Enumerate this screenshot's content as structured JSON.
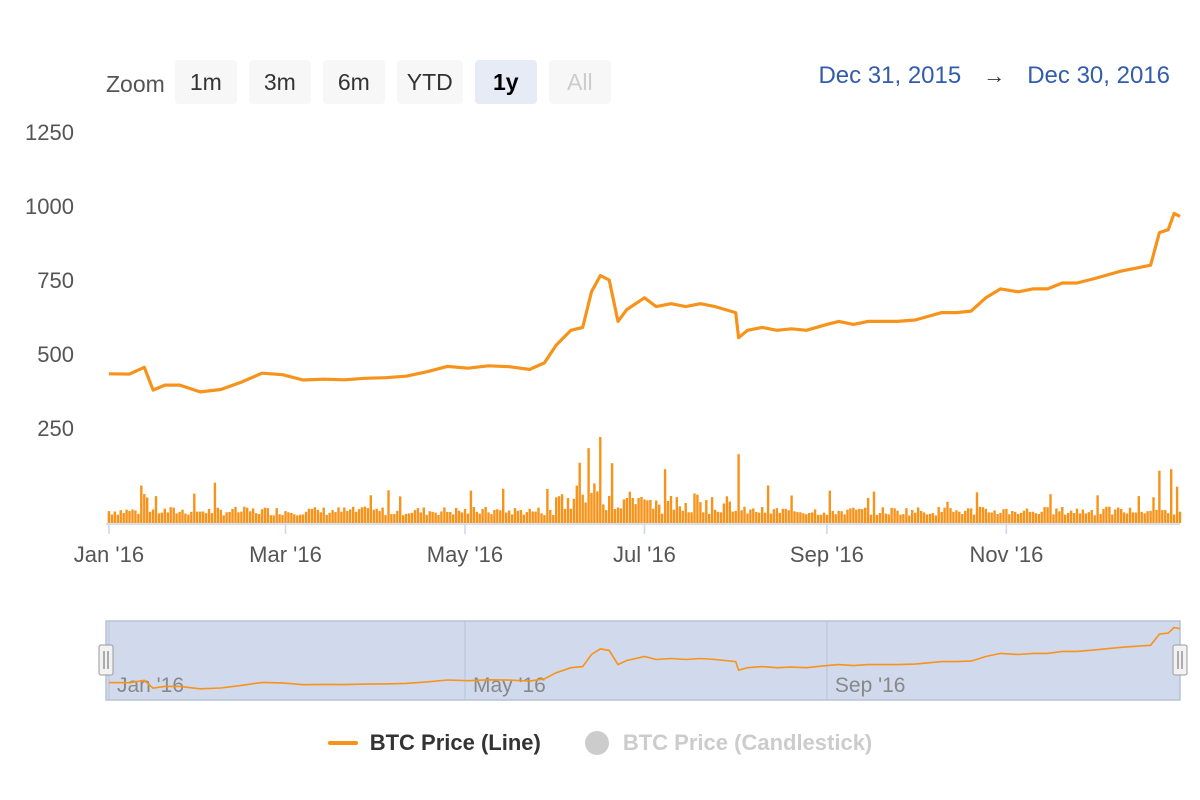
{
  "zoom": {
    "label": "Zoom",
    "buttons": [
      {
        "label": "1m",
        "state": "normal"
      },
      {
        "label": "3m",
        "state": "normal"
      },
      {
        "label": "6m",
        "state": "normal"
      },
      {
        "label": "YTD",
        "state": "normal"
      },
      {
        "label": "1y",
        "state": "active"
      },
      {
        "label": "All",
        "state": "disabled"
      }
    ]
  },
  "range": {
    "from": "Dec 31, 2015",
    "arrow": "→",
    "to": "Dec 30, 2016"
  },
  "legend": [
    {
      "label": "BTC Price (Line)",
      "visible": true
    },
    {
      "label": "BTC Price (Candlestick)",
      "visible": false
    }
  ],
  "colors": {
    "line": "#f7931a",
    "volume": "#f7931a",
    "navigator_mask": "#ccd6eb",
    "range_text": "#335cad"
  },
  "chart_data": {
    "type": "line",
    "series": [
      {
        "name": "BTC Price (Line)",
        "x": [
          "2016-01-01",
          "2016-01-08",
          "2016-01-13",
          "2016-01-16",
          "2016-01-20",
          "2016-01-25",
          "2016-02-01",
          "2016-02-08",
          "2016-02-15",
          "2016-02-22",
          "2016-02-29",
          "2016-03-07",
          "2016-03-14",
          "2016-03-21",
          "2016-03-28",
          "2016-04-04",
          "2016-04-11",
          "2016-04-18",
          "2016-04-25",
          "2016-05-02",
          "2016-05-09",
          "2016-05-16",
          "2016-05-23",
          "2016-05-28",
          "2016-06-01",
          "2016-06-06",
          "2016-06-10",
          "2016-06-13",
          "2016-06-16",
          "2016-06-19",
          "2016-06-22",
          "2016-06-25",
          "2016-07-01",
          "2016-07-05",
          "2016-07-10",
          "2016-07-15",
          "2016-07-20",
          "2016-07-25",
          "2016-08-01",
          "2016-08-02",
          "2016-08-05",
          "2016-08-10",
          "2016-08-15",
          "2016-08-20",
          "2016-08-25",
          "2016-09-01",
          "2016-09-05",
          "2016-09-10",
          "2016-09-15",
          "2016-09-20",
          "2016-09-25",
          "2016-10-01",
          "2016-10-10",
          "2016-10-15",
          "2016-10-20",
          "2016-10-25",
          "2016-10-30",
          "2016-11-05",
          "2016-11-10",
          "2016-11-15",
          "2016-11-20",
          "2016-11-25",
          "2016-12-01",
          "2016-12-10",
          "2016-12-15",
          "2016-12-20",
          "2016-12-23",
          "2016-12-26",
          "2016-12-28",
          "2016-12-30"
        ],
        "y": [
          433,
          432,
          455,
          378,
          395,
          395,
          372,
          380,
          405,
          435,
          430,
          412,
          415,
          413,
          418,
          420,
          425,
          440,
          458,
          452,
          460,
          457,
          448,
          470,
          530,
          580,
          590,
          710,
          765,
          750,
          610,
          650,
          690,
          660,
          670,
          660,
          670,
          660,
          640,
          555,
          580,
          590,
          580,
          585,
          580,
          600,
          610,
          600,
          610,
          610,
          610,
          615,
          640,
          640,
          645,
          690,
          720,
          710,
          720,
          720,
          740,
          740,
          755,
          780,
          790,
          800,
          910,
          920,
          975,
          965
        ]
      }
    ],
    "volume": {
      "note": "daily trading volume bars (unlabeled scale)",
      "peaks": [
        {
          "x": "2016-01-12",
          "v": 50
        },
        {
          "x": "2016-06-12",
          "v": 100
        },
        {
          "x": "2016-06-16",
          "v": 115
        },
        {
          "x": "2016-06-20",
          "v": 80
        },
        {
          "x": "2016-07-08",
          "v": 72
        },
        {
          "x": "2016-08-02",
          "v": 92
        },
        {
          "x": "2016-12-23",
          "v": 70
        },
        {
          "x": "2016-12-27",
          "v": 72
        }
      ]
    },
    "x_tick_labels": [
      "Jan '16",
      "Mar '16",
      "May '16",
      "Jul '16",
      "Sep '16",
      "Nov '16"
    ],
    "x_tick_dates": [
      "2016-01-01",
      "2016-03-01",
      "2016-05-01",
      "2016-07-01",
      "2016-09-01",
      "2016-11-01"
    ],
    "y_tick_labels": [
      "250",
      "500",
      "750",
      "1000",
      "1250"
    ],
    "ylim": [
      250,
      1250
    ],
    "xlim": [
      "2015-12-31",
      "2016-12-30"
    ],
    "grid": false,
    "navigator": {
      "tick_labels": [
        "Jan '16",
        "May '16",
        "Sep '16"
      ],
      "tick_dates": [
        "2016-01-01",
        "2016-05-01",
        "2016-09-01"
      ]
    }
  }
}
